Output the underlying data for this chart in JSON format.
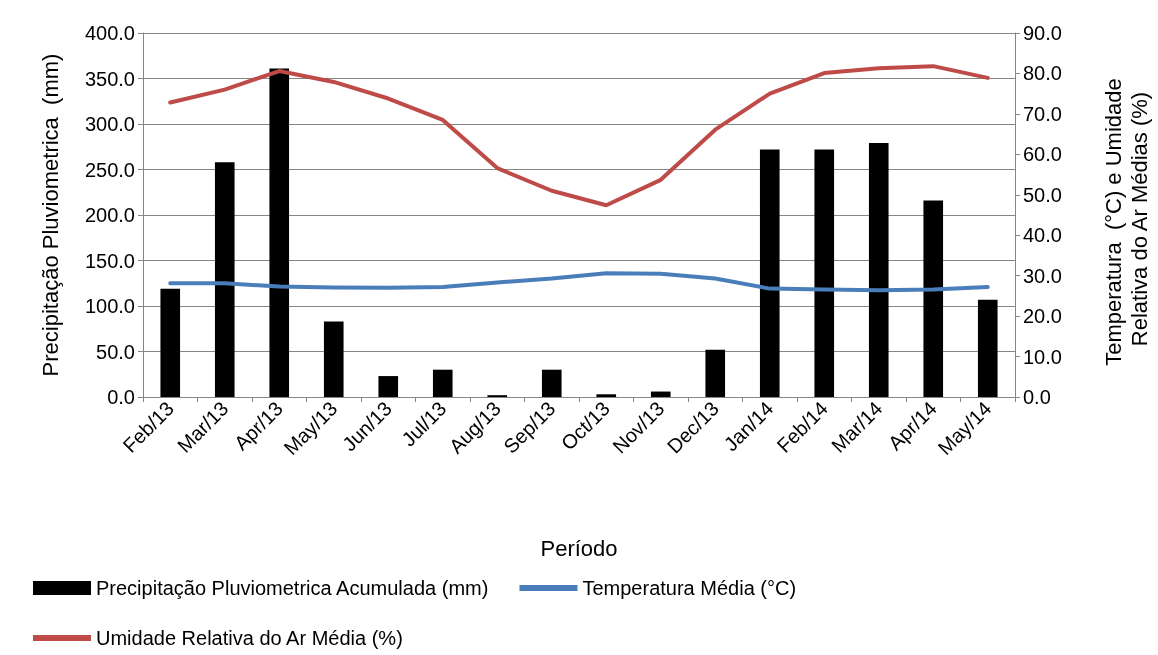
{
  "chart_data": {
    "type": "bar",
    "xlabel": "Período",
    "ylabel": "Precipitação Pluviometrica  (mm)",
    "y2label": "Temperatura  (°C) e Umidade Relativa do Ar Médias (%)",
    "categories": [
      "Feb/13",
      "Mar/13",
      "Apr/13",
      "May/13",
      "Jun/13",
      "Jul/13",
      "Aug/13",
      "Sep/13",
      "Oct/13",
      "Nov/13",
      "Dec/13",
      "Jan/14",
      "Feb/14",
      "Mar/14",
      "Apr/14",
      "May/14"
    ],
    "series": [
      {
        "name": "Precipitação Pluviometrica Acumulada (mm)",
        "color": "#000000",
        "values": [
          119,
          258,
          361,
          83,
          23,
          30,
          2,
          30,
          3,
          6,
          52,
          272,
          272,
          279,
          216,
          107
        ]
      },
      {
        "name": "Temperatura Média (°C)",
        "type": "line",
        "axis": "y2",
        "color": "#4a7ebb",
        "values": [
          28.1,
          28.1,
          27.3,
          27.1,
          27.0,
          27.2,
          28.3,
          29.3,
          30.6,
          30.5,
          29.3,
          26.8,
          26.6,
          26.4,
          26.6,
          27.2
        ]
      },
      {
        "name": "Umidade Relativa do Ar Média (%)",
        "type": "line",
        "axis": "y2",
        "color": "#be4b48",
        "values": [
          72.8,
          76.0,
          80.6,
          77.9,
          73.8,
          68.5,
          56.6,
          51.0,
          47.4,
          53.7,
          66.1,
          75.0,
          80.1,
          81.3,
          81.8,
          78.9
        ]
      }
    ],
    "ylim": [
      0,
      400
    ],
    "yticks": [
      {
        "value": 0,
        "label": "0.0"
      },
      {
        "value": 50,
        "label": "50.0"
      },
      {
        "value": 100,
        "label": "100.0"
      },
      {
        "value": 150,
        "label": "150.0"
      },
      {
        "value": 200,
        "label": "200.0"
      },
      {
        "value": 250,
        "label": "250.0"
      },
      {
        "value": 300,
        "label": "300.0"
      },
      {
        "value": 350,
        "label": "350.0"
      },
      {
        "value": 400,
        "label": "400.0"
      }
    ],
    "y2lim": [
      0,
      90
    ],
    "y2ticks": [
      {
        "value": 0,
        "label": "0.0"
      },
      {
        "value": 10,
        "label": "10.0"
      },
      {
        "value": 20,
        "label": "20.0"
      },
      {
        "value": 30,
        "label": "30.0"
      },
      {
        "value": 40,
        "label": "40.0"
      },
      {
        "value": 50,
        "label": "50.0"
      },
      {
        "value": 60,
        "label": "60.0"
      },
      {
        "value": 70,
        "label": "70.0"
      },
      {
        "value": 80,
        "label": "80.0"
      },
      {
        "value": 90,
        "label": "90.0"
      }
    ],
    "grid": "y",
    "legend": "bottom left",
    "marker": "none",
    "line_style": "solid"
  }
}
